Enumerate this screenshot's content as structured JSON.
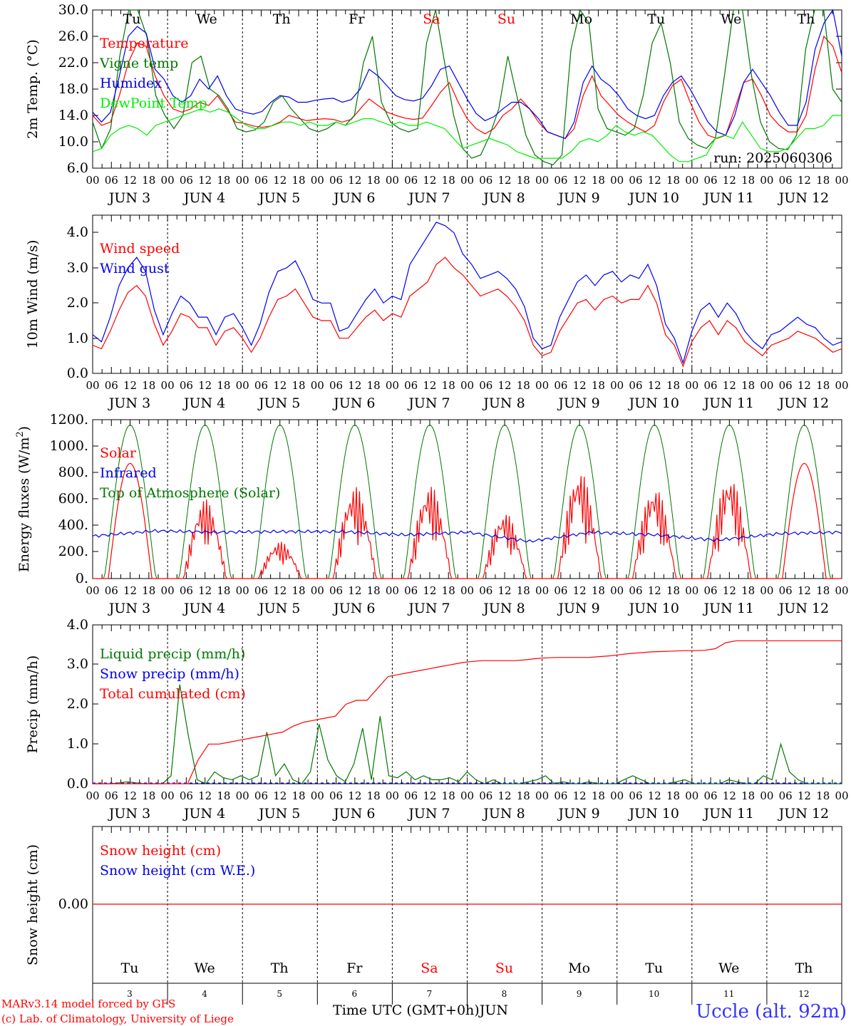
{
  "chart_data": [
    {
      "type": "line",
      "id": "temp",
      "ylabel": "2m Temp. (°C)",
      "yticks": [
        "6.0",
        "10.0",
        "14.0",
        "18.0",
        "22.0",
        "26.0",
        "30.0"
      ],
      "ylim": [
        6,
        30
      ],
      "annotation": "run: 2025060306",
      "series": [
        {
          "name": "Temperature",
          "color": "#ff0000",
          "values": [
            14,
            12.5,
            13,
            17,
            22,
            25,
            24.5,
            20,
            17,
            15,
            14.5,
            15,
            16,
            15.5,
            17,
            15,
            13,
            12.8,
            12.4,
            12.2,
            12.4,
            13,
            14,
            13.6,
            13.2,
            13.4,
            13.5,
            13.4,
            13,
            13.4,
            15,
            16.5,
            15.5,
            14.5,
            14,
            13.6,
            13.4,
            13.6,
            15.5,
            17.5,
            19,
            16,
            13.5,
            12,
            11.2,
            12,
            14,
            15,
            16.5,
            15,
            13,
            11.5,
            11,
            10.5,
            12,
            17,
            20,
            17,
            15.5,
            14,
            13,
            12.2,
            11.5,
            12.5,
            16,
            18.5,
            19.5,
            16,
            13,
            11,
            10.5,
            11,
            15,
            19,
            19.5,
            17,
            14,
            12.5,
            11.5,
            11.5,
            14,
            21,
            26,
            24.5,
            20.5
          ]
        },
        {
          "name": "Vigne temp",
          "color": "#007700",
          "values": [
            13,
            9,
            12,
            23,
            30,
            31,
            26,
            17,
            14,
            12,
            14,
            22,
            23,
            18,
            17,
            15,
            12,
            11.5,
            11.8,
            13,
            16,
            17,
            15,
            13.5,
            12,
            11.5,
            12,
            13,
            12.5,
            14,
            22,
            26,
            16,
            13,
            12,
            11.5,
            12,
            25,
            30,
            22,
            14,
            9,
            7.5,
            8,
            11,
            15,
            23,
            17,
            11,
            8,
            7,
            6.5,
            8,
            24,
            31,
            28,
            15,
            12,
            11.5,
            11,
            12,
            17,
            25,
            28,
            22,
            13,
            10.5,
            9.5,
            9,
            10.5,
            20,
            31,
            30,
            20,
            13,
            10,
            9,
            8.8,
            11,
            24,
            32,
            30,
            18,
            16
          ]
        },
        {
          "name": "Humidex",
          "color": "#0000ee",
          "values": [
            14.5,
            13,
            14.5,
            20,
            26,
            27.5,
            26.5,
            21,
            19.5,
            17,
            16,
            17,
            19.5,
            18,
            20,
            17,
            15,
            14.5,
            14.2,
            14.6,
            16,
            17,
            16.8,
            16,
            16,
            16.3,
            16.5,
            16.6,
            16,
            16.4,
            18,
            21,
            20,
            18.5,
            17,
            16.4,
            16.2,
            16.6,
            18.5,
            21,
            21.5,
            19,
            16.5,
            14.3,
            13.2,
            13.8,
            15,
            16,
            16,
            15,
            13.5,
            11.5,
            11,
            10.5,
            13,
            19,
            21.5,
            19.5,
            18.5,
            17,
            15,
            14,
            13.5,
            14,
            17,
            19,
            20,
            18,
            15.5,
            13,
            11.5,
            11,
            14,
            19,
            21,
            19,
            17,
            14.5,
            12.5,
            12.5,
            16,
            24,
            28,
            30,
            23
          ]
        },
        {
          "name": "DewPoint Temp",
          "color": "#00ee00",
          "values": [
            8.5,
            9,
            11,
            12,
            12.5,
            12,
            11,
            12.5,
            13,
            13.5,
            14,
            14.5,
            15,
            14.5,
            15,
            14.5,
            13.5,
            12.5,
            12,
            12,
            12.5,
            13,
            13,
            12.5,
            13,
            12.5,
            12.5,
            13,
            12.5,
            13,
            13.5,
            13.5,
            13,
            12.5,
            13,
            12.5,
            12.5,
            13,
            12.5,
            12,
            10.5,
            9,
            9.5,
            10,
            10.5,
            10,
            9.5,
            8.5,
            8,
            7.5,
            7.5,
            7.5,
            7.5,
            8.5,
            10,
            10.5,
            10,
            11,
            12.5,
            11.5,
            11,
            11.5,
            11,
            9.5,
            8,
            7,
            7,
            7.5,
            8,
            10.5,
            11,
            10.5,
            13,
            11,
            9,
            8.5,
            8.5,
            9,
            10.5,
            12,
            12,
            12.5,
            14,
            14
          ]
        }
      ]
    },
    {
      "type": "line",
      "id": "wind",
      "ylabel": "10m Wind (m/s)",
      "yticks": [
        "0.0",
        "1.0",
        "2.0",
        "3.0",
        "4.0"
      ],
      "ylim": [
        0,
        4.5
      ],
      "series": [
        {
          "name": "Wind speed",
          "color": "#ff0000",
          "values": [
            0.8,
            0.7,
            1.2,
            1.8,
            2.3,
            2.5,
            2.2,
            1.4,
            0.8,
            1.2,
            1.7,
            1.6,
            1.3,
            1.3,
            0.8,
            1.2,
            1.3,
            1,
            0.6,
            1,
            1.6,
            2.1,
            2.2,
            2.4,
            2,
            1.6,
            1.5,
            1.5,
            1,
            1,
            1.3,
            1.6,
            1.8,
            1.5,
            1.7,
            1.6,
            2.2,
            2.4,
            2.6,
            3.1,
            3.3,
            3,
            2.8,
            2.5,
            2.2,
            2.3,
            2.4,
            2.2,
            1.9,
            1.5,
            0.8,
            0.5,
            0.6,
            1.2,
            1.6,
            2,
            2.1,
            1.8,
            2.1,
            2.2,
            2,
            2.1,
            2.1,
            2.5,
            2,
            1.1,
            0.8,
            0.2,
            0.9,
            1.3,
            1.5,
            1.1,
            1.5,
            1.3,
            0.9,
            0.7,
            0.5,
            0.8,
            0.9,
            1,
            1.2,
            1.1,
            1,
            0.8,
            0.6,
            0.7
          ]
        },
        {
          "name": "Wind gust",
          "color": "#0000ee",
          "values": [
            1.1,
            0.9,
            1.6,
            2.5,
            3,
            3.3,
            2.9,
            1.8,
            1.1,
            1.7,
            2.2,
            2,
            1.6,
            1.6,
            1.1,
            1.6,
            1.7,
            1.3,
            0.8,
            1.4,
            2.3,
            2.9,
            3,
            3.2,
            2.7,
            2.1,
            2,
            2,
            1.2,
            1.3,
            1.7,
            2.1,
            2.4,
            2,
            2.2,
            2.1,
            3.1,
            3.5,
            3.9,
            4.3,
            4.2,
            4,
            3.4,
            3.1,
            2.7,
            2.8,
            2.9,
            2.7,
            2.4,
            1.9,
            1,
            0.7,
            0.8,
            1.6,
            2.1,
            2.6,
            2.8,
            2.5,
            2.8,
            2.9,
            2.6,
            2.8,
            2.7,
            3.1,
            2.5,
            1.4,
            1,
            0.3,
            1.2,
            1.8,
            2,
            1.6,
            2,
            1.7,
            1.2,
            0.9,
            0.7,
            1.1,
            1.2,
            1.4,
            1.6,
            1.4,
            1.3,
            1,
            0.8,
            0.9
          ]
        }
      ]
    },
    {
      "type": "line",
      "id": "energy",
      "ylabel": "Energy fluxes (W/m²)",
      "ylabel_main": "Energy fluxes (W/m",
      "ylabel_sup": "2",
      "ylabel_end": ")",
      "yticks": [
        "0.",
        "200.",
        "400.",
        "600.",
        "800.",
        "1000.",
        "1200."
      ],
      "ylim": [
        0,
        1200
      ],
      "series": [
        {
          "name": "Solar",
          "color": "#ff0000"
        },
        {
          "name": "Infrared",
          "color": "#0000ee"
        },
        {
          "name": "Top of Atmosphere (Solar)",
          "color": "#007700"
        }
      ],
      "toa_peak": 1160,
      "solar_peaks": [
        870,
        600,
        280,
        700,
        710,
        500,
        820,
        700,
        780,
        870
      ],
      "infrared": [
        320,
        360,
        350,
        355,
        355,
        330,
        350,
        280,
        350,
        330,
        290,
        340,
        350
      ]
    },
    {
      "type": "line",
      "id": "precip",
      "ylabel": "Precip (mm/h)",
      "yticks": [
        "0.0",
        "1.0",
        "2.0",
        "3.0",
        "4.0"
      ],
      "ylim": [
        0,
        4
      ],
      "series": [
        {
          "name": "Liquid precip (mm/h)",
          "color": "#007700",
          "values": [
            0,
            0,
            0,
            0.02,
            0.05,
            0.02,
            0,
            0,
            0,
            0.2,
            2.5,
            1.2,
            0.1,
            0,
            0.3,
            0.15,
            0.1,
            0.2,
            0.1,
            0.2,
            1.3,
            0.2,
            0.5,
            0.1,
            0,
            0.3,
            1.5,
            0.6,
            0.2,
            0.05,
            0.5,
            1.4,
            0.1,
            1.7,
            0.2,
            0.15,
            0.3,
            0.1,
            0.2,
            0.1,
            0.1,
            0.15,
            0.05,
            0.3,
            0.1,
            0,
            0.1,
            0,
            0,
            0,
            0.05,
            0.1,
            0.2,
            0,
            0.05,
            0,
            0,
            0.05,
            0,
            0,
            0,
            0.1,
            0.2,
            0.1,
            0,
            0,
            0,
            0.05,
            0.1,
            0,
            0,
            0,
            0,
            0.1,
            0.05,
            0,
            0,
            0.2,
            0.1,
            1,
            0.3,
            0.1,
            0,
            0,
            0,
            0,
            0
          ]
        },
        {
          "name": "Snow precip (mm/h)",
          "color": "#0000ee",
          "values": [
            0,
            0
          ]
        },
        {
          "name": "Total cumulated (cm)",
          "color": "#ff0000",
          "values": [
            0,
            0,
            0,
            0,
            0,
            0,
            0,
            0,
            0,
            0,
            0.6,
            1,
            1,
            1.05,
            1.1,
            1.15,
            1.2,
            1.25,
            1.3,
            1.45,
            1.55,
            1.6,
            1.65,
            1.7,
            2,
            2.1,
            2.1,
            2.4,
            2.7,
            2.75,
            2.8,
            2.85,
            2.9,
            2.95,
            3,
            3.05,
            3.08,
            3.1,
            3.1,
            3.1,
            3.1,
            3.12,
            3.15,
            3.17,
            3.18,
            3.18,
            3.18,
            3.18,
            3.2,
            3.22,
            3.25,
            3.28,
            3.3,
            3.32,
            3.33,
            3.34,
            3.35,
            3.35,
            3.36,
            3.4,
            3.55,
            3.6,
            3.6,
            3.6,
            3.6,
            3.6,
            3.6,
            3.6,
            3.6,
            3.6,
            3.6,
            3.6
          ]
        }
      ]
    },
    {
      "type": "line",
      "id": "snow",
      "ylabel": "Snow height (cm)",
      "yticks": [
        "0.00"
      ],
      "series": [
        {
          "name": "Snow height (cm)",
          "color": "#ff0000",
          "values": [
            0,
            0
          ]
        },
        {
          "name": "Snow height (cm W.E.)",
          "color": "#0000ee",
          "values": [
            0,
            0
          ]
        }
      ]
    }
  ],
  "axis": {
    "hour_labels": [
      "00",
      "06",
      "12",
      "18"
    ],
    "month": "JUN",
    "days": [
      "3",
      "4",
      "5",
      "6",
      "7",
      "8",
      "9",
      "10",
      "11",
      "12"
    ],
    "dow": [
      {
        "label": "Tu",
        "color": "#000000"
      },
      {
        "label": "We",
        "color": "#000000"
      },
      {
        "label": "Th",
        "color": "#000000"
      },
      {
        "label": "Fr",
        "color": "#000000"
      },
      {
        "label": "Sa",
        "color": "#ff0000"
      },
      {
        "label": "Su",
        "color": "#ff0000"
      },
      {
        "label": "Mo",
        "color": "#000000"
      },
      {
        "label": "Tu",
        "color": "#000000"
      },
      {
        "label": "We",
        "color": "#000000"
      },
      {
        "label": "Th",
        "color": "#000000"
      }
    ],
    "xlabel": "Time UTC (GMT+0h)",
    "xlabel_month": "JUN"
  },
  "footer": {
    "credit_line1": "MARv3.14 model forced by GFS",
    "credit_line2": "(c) Lab. of Climatology, University of Liege",
    "station": "Uccle (alt. 92m)"
  },
  "colors": {
    "credit": "#ff0000",
    "station": "#3333ff"
  }
}
